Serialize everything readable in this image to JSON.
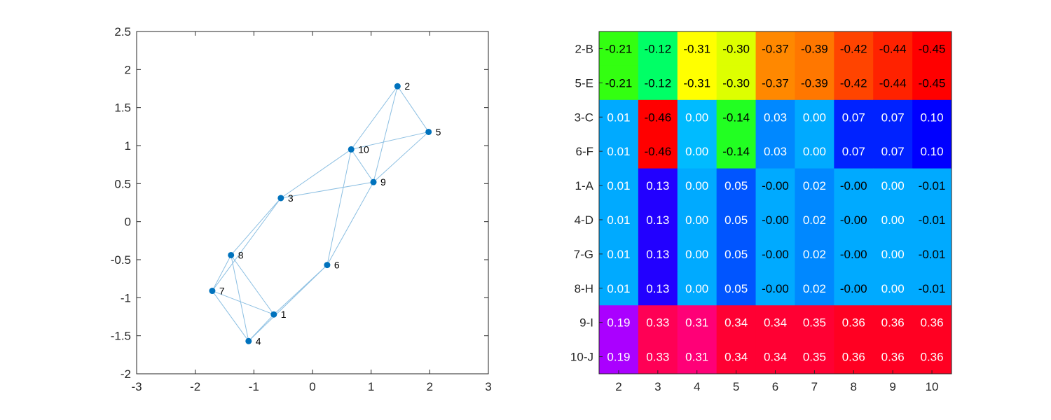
{
  "chart_data": [
    {
      "type": "scatter",
      "xlim": [
        -3,
        3
      ],
      "ylim": [
        -2,
        2.5
      ],
      "x_ticks": [
        "-3",
        "-2",
        "-1",
        "0",
        "1",
        "2",
        "3"
      ],
      "y_ticks": [
        "2.5",
        "2",
        "1.5",
        "1",
        "0.5",
        "0",
        "-0.5",
        "-1",
        "-1.5",
        "-2"
      ],
      "grid": false,
      "nodes": [
        {
          "label": "1",
          "x": -0.66,
          "y": -1.22
        },
        {
          "label": "2",
          "x": 1.45,
          "y": 1.78
        },
        {
          "label": "3",
          "x": -0.54,
          "y": 0.31
        },
        {
          "label": "4",
          "x": -1.09,
          "y": -1.57
        },
        {
          "label": "5",
          "x": 1.98,
          "y": 1.18
        },
        {
          "label": "6",
          "x": 0.25,
          "y": -0.57
        },
        {
          "label": "7",
          "x": -1.71,
          "y": -0.91
        },
        {
          "label": "8",
          "x": -1.39,
          "y": -0.44
        },
        {
          "label": "9",
          "x": 1.04,
          "y": 0.52
        },
        {
          "label": "10",
          "x": 0.66,
          "y": 0.95
        }
      ],
      "edges": [
        [
          "2",
          "5"
        ],
        [
          "2",
          "10"
        ],
        [
          "2",
          "9"
        ],
        [
          "5",
          "10"
        ],
        [
          "5",
          "9"
        ],
        [
          "10",
          "9"
        ],
        [
          "10",
          "3"
        ],
        [
          "10",
          "6"
        ],
        [
          "9",
          "3"
        ],
        [
          "9",
          "6"
        ],
        [
          "3",
          "8"
        ],
        [
          "3",
          "7"
        ],
        [
          "6",
          "1"
        ],
        [
          "6",
          "4"
        ],
        [
          "8",
          "7"
        ],
        [
          "8",
          "1"
        ],
        [
          "8",
          "4"
        ],
        [
          "7",
          "1"
        ],
        [
          "7",
          "4"
        ],
        [
          "1",
          "4"
        ]
      ],
      "colors": {
        "marker": "#0072bd",
        "edge": "#8cbfe2",
        "axis": "#262626"
      }
    },
    {
      "type": "heatmap",
      "columns": [
        "2",
        "3",
        "4",
        "5",
        "6",
        "7",
        "8",
        "9",
        "10"
      ],
      "rows": [
        {
          "label": "2-B",
          "values": [
            "-0.21",
            "-0.12",
            "-0.31",
            "-0.30",
            "-0.37",
            "-0.39",
            "-0.42",
            "-0.44",
            "-0.45"
          ]
        },
        {
          "label": "5-E",
          "values": [
            "-0.21",
            "-0.12",
            "-0.31",
            "-0.30",
            "-0.37",
            "-0.39",
            "-0.42",
            "-0.44",
            "-0.45"
          ]
        },
        {
          "label": "3-C",
          "values": [
            "0.01",
            "-0.46",
            "0.00",
            "-0.14",
            "0.03",
            "0.00",
            "0.07",
            "0.07",
            "0.10"
          ]
        },
        {
          "label": "6-F",
          "values": [
            "0.01",
            "-0.46",
            "0.00",
            "-0.14",
            "0.03",
            "0.00",
            "0.07",
            "0.07",
            "0.10"
          ]
        },
        {
          "label": "1-A",
          "values": [
            "0.01",
            "0.13",
            "0.00",
            "0.05",
            "-0.00",
            "0.02",
            "-0.00",
            "0.00",
            "-0.01"
          ]
        },
        {
          "label": "4-D",
          "values": [
            "0.01",
            "0.13",
            "0.00",
            "0.05",
            "-0.00",
            "0.02",
            "-0.00",
            "0.00",
            "-0.01"
          ]
        },
        {
          "label": "7-G",
          "values": [
            "0.01",
            "0.13",
            "0.00",
            "0.05",
            "-0.00",
            "0.02",
            "-0.00",
            "0.00",
            "-0.01"
          ]
        },
        {
          "label": "8-H",
          "values": [
            "0.01",
            "0.13",
            "0.00",
            "0.05",
            "-0.00",
            "0.02",
            "-0.00",
            "0.00",
            "-0.01"
          ]
        },
        {
          "label": "9-I",
          "values": [
            "0.19",
            "0.33",
            "0.31",
            "0.34",
            "0.34",
            "0.35",
            "0.36",
            "0.36",
            "0.36"
          ]
        },
        {
          "label": "10-J",
          "values": [
            "0.19",
            "0.33",
            "0.31",
            "0.34",
            "0.34",
            "0.35",
            "0.36",
            "0.36",
            "0.36"
          ]
        }
      ],
      "cell_colors": [
        [
          "#33ff11",
          "#00ff66",
          "#ffff00",
          "#ddff00",
          "#ff8800",
          "#ff7700",
          "#ff4400",
          "#ff2200",
          "#ff0000"
        ],
        [
          "#33ff11",
          "#00ff66",
          "#ffff00",
          "#ddff00",
          "#ff8800",
          "#ff7700",
          "#ff4400",
          "#ff2200",
          "#ff0000"
        ],
        [
          "#00aaff",
          "#ff0000",
          "#00bbff",
          "#22ff22",
          "#0088ff",
          "#00aaff",
          "#0022ff",
          "#0022ff",
          "#0000ff"
        ],
        [
          "#00aaff",
          "#ff0000",
          "#00bbff",
          "#22ff22",
          "#0088ff",
          "#00aaff",
          "#0022ff",
          "#0022ff",
          "#0000ff"
        ],
        [
          "#00aaff",
          "#2200ff",
          "#00aaff",
          "#0055ff",
          "#00aaff",
          "#0088ff",
          "#00aaff",
          "#00aaff",
          "#00aaff"
        ],
        [
          "#00aaff",
          "#2200ff",
          "#00aaff",
          "#0055ff",
          "#00aaff",
          "#0088ff",
          "#00aaff",
          "#00aaff",
          "#00aaff"
        ],
        [
          "#00aaff",
          "#2200ff",
          "#00aaff",
          "#0055ff",
          "#00aaff",
          "#0088ff",
          "#00aaff",
          "#00aaff",
          "#00aaff"
        ],
        [
          "#00aaff",
          "#2200ff",
          "#00aaff",
          "#0055ff",
          "#00aaff",
          "#0088ff",
          "#00aaff",
          "#00aaff",
          "#00aaff"
        ],
        [
          "#aa00ff",
          "#ff0055",
          "#ff0077",
          "#ff0033",
          "#ff0033",
          "#ff0033",
          "#ff0022",
          "#ff0022",
          "#ff0022"
        ],
        [
          "#aa00ff",
          "#ff0055",
          "#ff0077",
          "#ff0033",
          "#ff0033",
          "#ff0033",
          "#ff0022",
          "#ff0022",
          "#ff0022"
        ]
      ],
      "text_colors": [
        [
          "#000000",
          "#000000",
          "#000000",
          "#000000",
          "#000000",
          "#000000",
          "#000000",
          "#000000",
          "#000000"
        ],
        [
          "#000000",
          "#000000",
          "#000000",
          "#000000",
          "#000000",
          "#000000",
          "#000000",
          "#000000",
          "#000000"
        ],
        [
          "#ffffff",
          "#000000",
          "#ffffff",
          "#000000",
          "#ffffff",
          "#ffffff",
          "#ffffff",
          "#ffffff",
          "#ffffff"
        ],
        [
          "#ffffff",
          "#000000",
          "#ffffff",
          "#000000",
          "#ffffff",
          "#ffffff",
          "#ffffff",
          "#ffffff",
          "#ffffff"
        ],
        [
          "#ffffff",
          "#ffffff",
          "#ffffff",
          "#ffffff",
          "#000000",
          "#ffffff",
          "#000000",
          "#ffffff",
          "#000000"
        ],
        [
          "#ffffff",
          "#ffffff",
          "#ffffff",
          "#ffffff",
          "#000000",
          "#ffffff",
          "#000000",
          "#ffffff",
          "#000000"
        ],
        [
          "#ffffff",
          "#ffffff",
          "#ffffff",
          "#ffffff",
          "#000000",
          "#ffffff",
          "#000000",
          "#ffffff",
          "#000000"
        ],
        [
          "#ffffff",
          "#ffffff",
          "#ffffff",
          "#ffffff",
          "#000000",
          "#ffffff",
          "#000000",
          "#ffffff",
          "#000000"
        ],
        [
          "#ffffff",
          "#ffffff",
          "#ffffff",
          "#ffffff",
          "#ffffff",
          "#ffffff",
          "#ffffff",
          "#ffffff",
          "#ffffff"
        ],
        [
          "#ffffff",
          "#ffffff",
          "#ffffff",
          "#ffffff",
          "#ffffff",
          "#ffffff",
          "#ffffff",
          "#ffffff",
          "#ffffff"
        ]
      ]
    }
  ]
}
